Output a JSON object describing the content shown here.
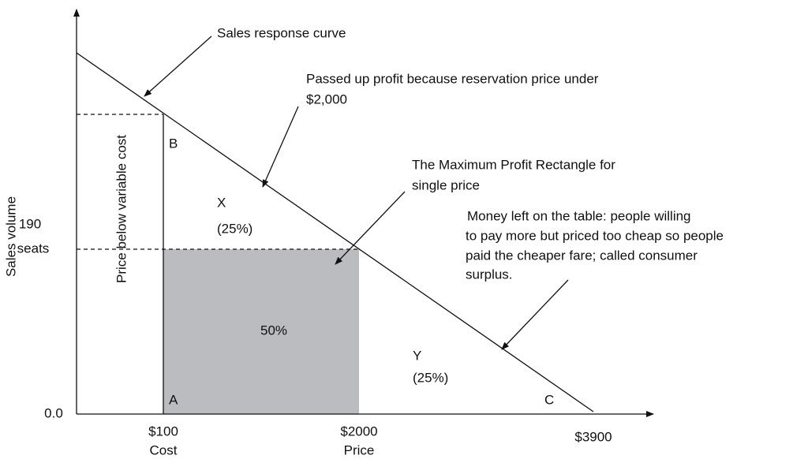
{
  "curve_label": "Sales response curve",
  "annotations": [
    {
      "lines": [
        "Passed up profit because reservation price under",
        "$2,000"
      ]
    },
    {
      "lines": [
        "The Maximum Profit Rectangle for",
        "single price"
      ]
    },
    {
      "lines": [
        "Money left on the table: people willing",
        "to pay more but priced too cheap so people",
        "paid the cheaper fare; called consumer",
        "surplus."
      ]
    }
  ],
  "regions": {
    "x": {
      "name": "X",
      "share": "(25%)"
    },
    "rectangle": {
      "share": "50%"
    },
    "y": {
      "name": "Y",
      "share": "(25%)"
    },
    "below_cost": "Price below variable cost"
  },
  "points": {
    "a": "A",
    "b": "B",
    "c": "C"
  },
  "y_axis": {
    "title": "Sales volume",
    "labels": [
      "190",
      "seats",
      "0.0"
    ]
  },
  "x_axis": {
    "labels": [
      {
        "price": "$100",
        "note": "Cost"
      },
      {
        "price": "$2000",
        "note": "Price"
      },
      {
        "price": "$3900"
      }
    ]
  }
}
